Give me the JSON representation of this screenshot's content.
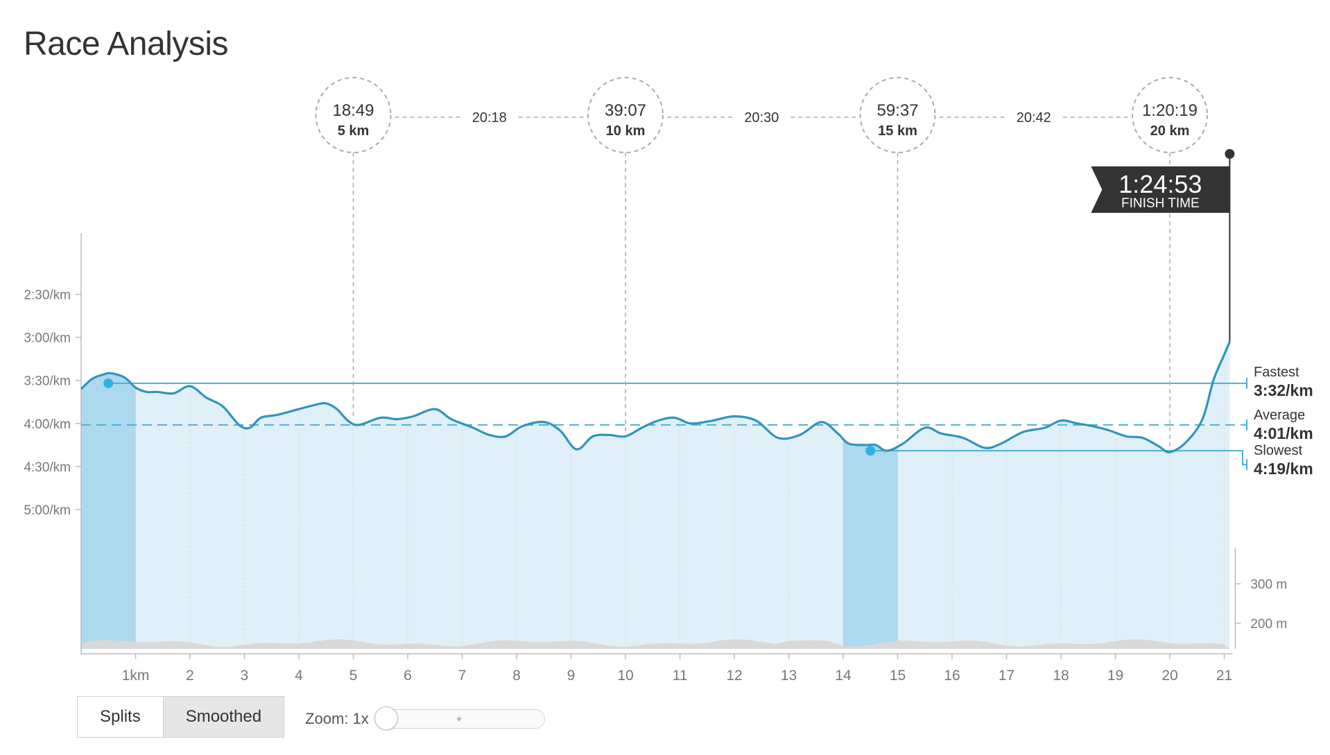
{
  "page": {
    "title": "Race Analysis"
  },
  "chart_data": {
    "type": "line",
    "x_unit": "km",
    "x_ticks": [
      "1km",
      "2",
      "3",
      "4",
      "5",
      "6",
      "7",
      "8",
      "9",
      "10",
      "11",
      "12",
      "13",
      "14",
      "15",
      "16",
      "17",
      "18",
      "19",
      "20",
      "21"
    ],
    "y_ticks": [
      "2:30/km",
      "3:00/km",
      "3:30/km",
      "4:00/km",
      "4:30/km",
      "5:00/km"
    ],
    "y_tick_seconds": [
      150,
      180,
      210,
      240,
      270,
      300
    ],
    "y_range_seconds": [
      115,
      325
    ],
    "elevation_ticks": [
      "300 m",
      "200 m"
    ],
    "elevation_tick_values": [
      300,
      200
    ],
    "series": [
      {
        "values_sec_per_km": [
          [
            0.0,
            216
          ],
          [
            0.2,
            209
          ],
          [
            0.4,
            206
          ],
          [
            0.55,
            205
          ],
          [
            0.8,
            208
          ],
          [
            1.0,
            215
          ],
          [
            1.2,
            218
          ],
          [
            1.4,
            218
          ],
          [
            1.7,
            219
          ],
          [
            2.0,
            214
          ],
          [
            2.3,
            222
          ],
          [
            2.6,
            228
          ],
          [
            2.9,
            241
          ],
          [
            3.1,
            243
          ],
          [
            3.3,
            236
          ],
          [
            3.6,
            234
          ],
          [
            4.0,
            230
          ],
          [
            4.3,
            227
          ],
          [
            4.5,
            226
          ],
          [
            4.7,
            230
          ],
          [
            4.9,
            238
          ],
          [
            5.1,
            241
          ],
          [
            5.5,
            236
          ],
          [
            5.8,
            237
          ],
          [
            6.1,
            235
          ],
          [
            6.5,
            230
          ],
          [
            6.8,
            237
          ],
          [
            7.2,
            243
          ],
          [
            7.5,
            248
          ],
          [
            7.8,
            249
          ],
          [
            8.1,
            242
          ],
          [
            8.5,
            239
          ],
          [
            8.8,
            245
          ],
          [
            9.1,
            258
          ],
          [
            9.4,
            249
          ],
          [
            9.7,
            248
          ],
          [
            10.0,
            249
          ],
          [
            10.3,
            243
          ],
          [
            10.6,
            238
          ],
          [
            10.9,
            236
          ],
          [
            11.2,
            240
          ],
          [
            11.6,
            238
          ],
          [
            12.0,
            235
          ],
          [
            12.4,
            238
          ],
          [
            12.8,
            250
          ],
          [
            13.2,
            248
          ],
          [
            13.6,
            239
          ],
          [
            13.9,
            247
          ],
          [
            14.1,
            254
          ],
          [
            14.4,
            255
          ],
          [
            14.6,
            255
          ],
          [
            14.8,
            259
          ],
          [
            15.1,
            254
          ],
          [
            15.5,
            243
          ],
          [
            15.8,
            247
          ],
          [
            16.2,
            250
          ],
          [
            16.6,
            257
          ],
          [
            16.9,
            254
          ],
          [
            17.3,
            246
          ],
          [
            17.7,
            243
          ],
          [
            18.0,
            238
          ],
          [
            18.3,
            240
          ],
          [
            18.6,
            242
          ],
          [
            18.9,
            245
          ],
          [
            19.2,
            249
          ],
          [
            19.5,
            250
          ],
          [
            19.8,
            256
          ],
          [
            20.0,
            260
          ],
          [
            20.3,
            253
          ],
          [
            20.6,
            237
          ],
          [
            20.8,
            210
          ],
          [
            21.0,
            192
          ],
          [
            21.1,
            183
          ]
        ]
      }
    ],
    "average": {
      "label": "Average",
      "value": "4:01/km",
      "seconds": 241
    },
    "fastest": {
      "label": "Fastest",
      "value": "3:32/km",
      "seconds": 212,
      "km": 0.5,
      "segment_km": [
        0,
        1
      ]
    },
    "slowest": {
      "label": "Slowest",
      "value": "4:19/km",
      "seconds": 259,
      "km": 14.5,
      "segment_km": [
        14,
        15
      ]
    },
    "checkpoints": [
      {
        "time": "18:49",
        "label": "5 km",
        "km": 5
      },
      {
        "time": "39:07",
        "label": "10 km",
        "km": 10
      },
      {
        "time": "59:37",
        "label": "15 km",
        "km": 15
      },
      {
        "time": "1:20:19",
        "label": "20 km",
        "km": 20
      }
    ],
    "split_times": [
      "20:18",
      "20:30",
      "20:42"
    ],
    "finish": {
      "time": "1:24:53",
      "label": "FINISH TIME",
      "km": 21.1
    },
    "colors": {
      "line": "#2f95bd",
      "fill": "#e1eff8",
      "highlight_fill": "#acd9ee",
      "marker": "#2fb0e6",
      "guide": "#49b0d6",
      "elevation": "#d9d9d9",
      "axis": "#bbbbbb",
      "finish_flag": "#333333"
    }
  },
  "controls": {
    "splits_label": "Splits",
    "smoothed_label": "Smoothed",
    "zoom_label": "Zoom: 1x"
  }
}
